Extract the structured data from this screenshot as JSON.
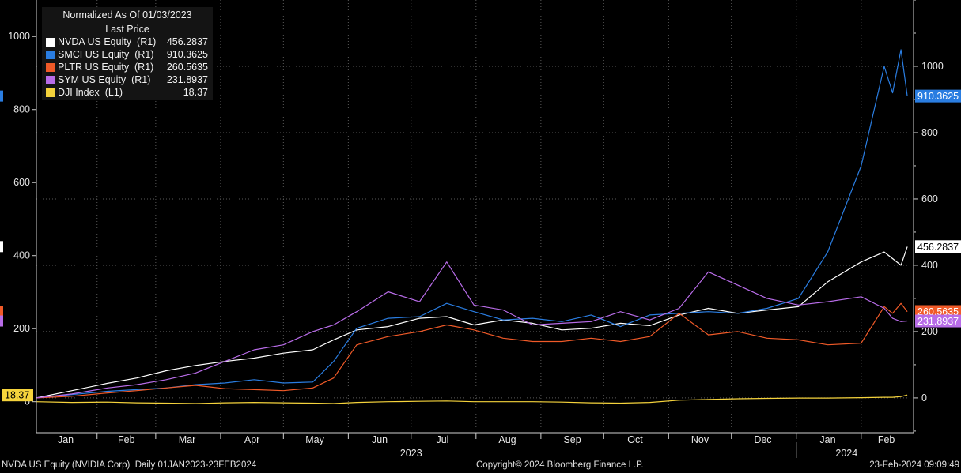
{
  "legend": {
    "title": "Normalized As Of 01/03/2023",
    "subtitle": "Last Price",
    "entries": [
      {
        "label": "NVDA US Equity  (R1)",
        "value": "456.2837",
        "color": "#ffffff"
      },
      {
        "label": "SMCI US Equity  (R1)",
        "value": "910.3625",
        "color": "#2a7de1"
      },
      {
        "label": "PLTR US Equity  (R1)",
        "value": "260.5635",
        "color": "#f05a28"
      },
      {
        "label": "SYM US Equity  (R1)",
        "value": "231.8937",
        "color": "#b86ce8"
      },
      {
        "label": "DJI Index  (L1)",
        "value": "18.37",
        "color": "#f5d33c"
      }
    ]
  },
  "footer": {
    "left": "NVDA US Equity (NVIDIA Corp)  Daily 01JAN2023-23FEB2024",
    "center": "Copyright© 2024 Bloomberg Finance L.P.",
    "right": "23-Feb-2024 09:09:49"
  },
  "chart_data": {
    "type": "line",
    "x": [
      "2023-01-03",
      "2023-01-20",
      "2023-02-06",
      "2023-02-20",
      "2023-03-06",
      "2023-03-20",
      "2023-04-03",
      "2023-04-17",
      "2023-05-01",
      "2023-05-15",
      "2023-05-25",
      "2023-06-05",
      "2023-06-20",
      "2023-07-05",
      "2023-07-18",
      "2023-07-31",
      "2023-08-14",
      "2023-08-28",
      "2023-09-11",
      "2023-09-25",
      "2023-10-09",
      "2023-10-23",
      "2023-11-06",
      "2023-11-20",
      "2023-12-04",
      "2023-12-18",
      "2024-01-02",
      "2024-01-16",
      "2024-02-01",
      "2024-02-12",
      "2024-02-16",
      "2024-02-20",
      "2024-02-23"
    ],
    "x_tick_labels": [
      "Jan",
      "Feb",
      "Mar",
      "Apr",
      "May",
      "Jun",
      "Jul",
      "Aug",
      "Sep",
      "Oct",
      "Nov",
      "Dec",
      "Jan",
      "Feb"
    ],
    "x_group_labels": [
      "2023",
      "2024"
    ],
    "left_axis": {
      "ticks": [
        0,
        200,
        400,
        600,
        800,
        1000
      ],
      "range": [
        -85,
        1100
      ]
    },
    "right_axis": {
      "ticks": [
        0,
        200,
        400,
        600,
        800,
        1000
      ],
      "range": [
        -105,
        1200
      ]
    },
    "series": [
      {
        "name": "NVDA US Equity",
        "axis": "R1",
        "color": "#ffffff",
        "last": "456.2837",
        "values": [
          0,
          22,
          44,
          60,
          82,
          98,
          110,
          120,
          135,
          145,
          175,
          205,
          215,
          240,
          245,
          220,
          235,
          225,
          205,
          210,
          225,
          218,
          250,
          270,
          255,
          265,
          275,
          350,
          410,
          440,
          420,
          400,
          456
        ]
      },
      {
        "name": "SMCI US Equity",
        "axis": "R1",
        "color": "#2a7de1",
        "last": "910.3625",
        "values": [
          0,
          10,
          20,
          25,
          30,
          40,
          45,
          55,
          45,
          48,
          110,
          210,
          240,
          245,
          285,
          260,
          235,
          240,
          230,
          250,
          215,
          250,
          255,
          260,
          255,
          270,
          300,
          440,
          700,
          1000,
          920,
          1050,
          910
        ]
      },
      {
        "name": "PLTR US Equity",
        "axis": "R1",
        "color": "#f05a28",
        "last": "260.5635",
        "values": [
          0,
          5,
          15,
          22,
          30,
          38,
          28,
          25,
          22,
          30,
          60,
          160,
          185,
          200,
          220,
          205,
          180,
          170,
          170,
          180,
          170,
          185,
          255,
          190,
          200,
          180,
          175,
          160,
          165,
          275,
          255,
          285,
          260
        ]
      },
      {
        "name": "SYM US Equity",
        "axis": "R1",
        "color": "#b86ce8",
        "last": "231.8937",
        "values": [
          0,
          12,
          30,
          40,
          55,
          75,
          110,
          145,
          160,
          200,
          220,
          260,
          320,
          290,
          410,
          280,
          265,
          220,
          225,
          230,
          260,
          235,
          270,
          380,
          340,
          300,
          280,
          290,
          305,
          270,
          240,
          230,
          232
        ]
      },
      {
        "name": "DJI Index",
        "axis": "L1",
        "color": "#f5d33c",
        "last": "18.37",
        "values": [
          0,
          -2,
          -1,
          -3,
          -4,
          -5,
          -3,
          -2,
          -3,
          -4,
          -5,
          -2,
          0,
          1,
          2,
          0,
          0,
          0,
          -1,
          -3,
          -4,
          -2,
          4,
          6,
          8,
          9,
          10,
          10,
          11,
          12,
          12,
          14,
          18.37
        ]
      }
    ]
  }
}
